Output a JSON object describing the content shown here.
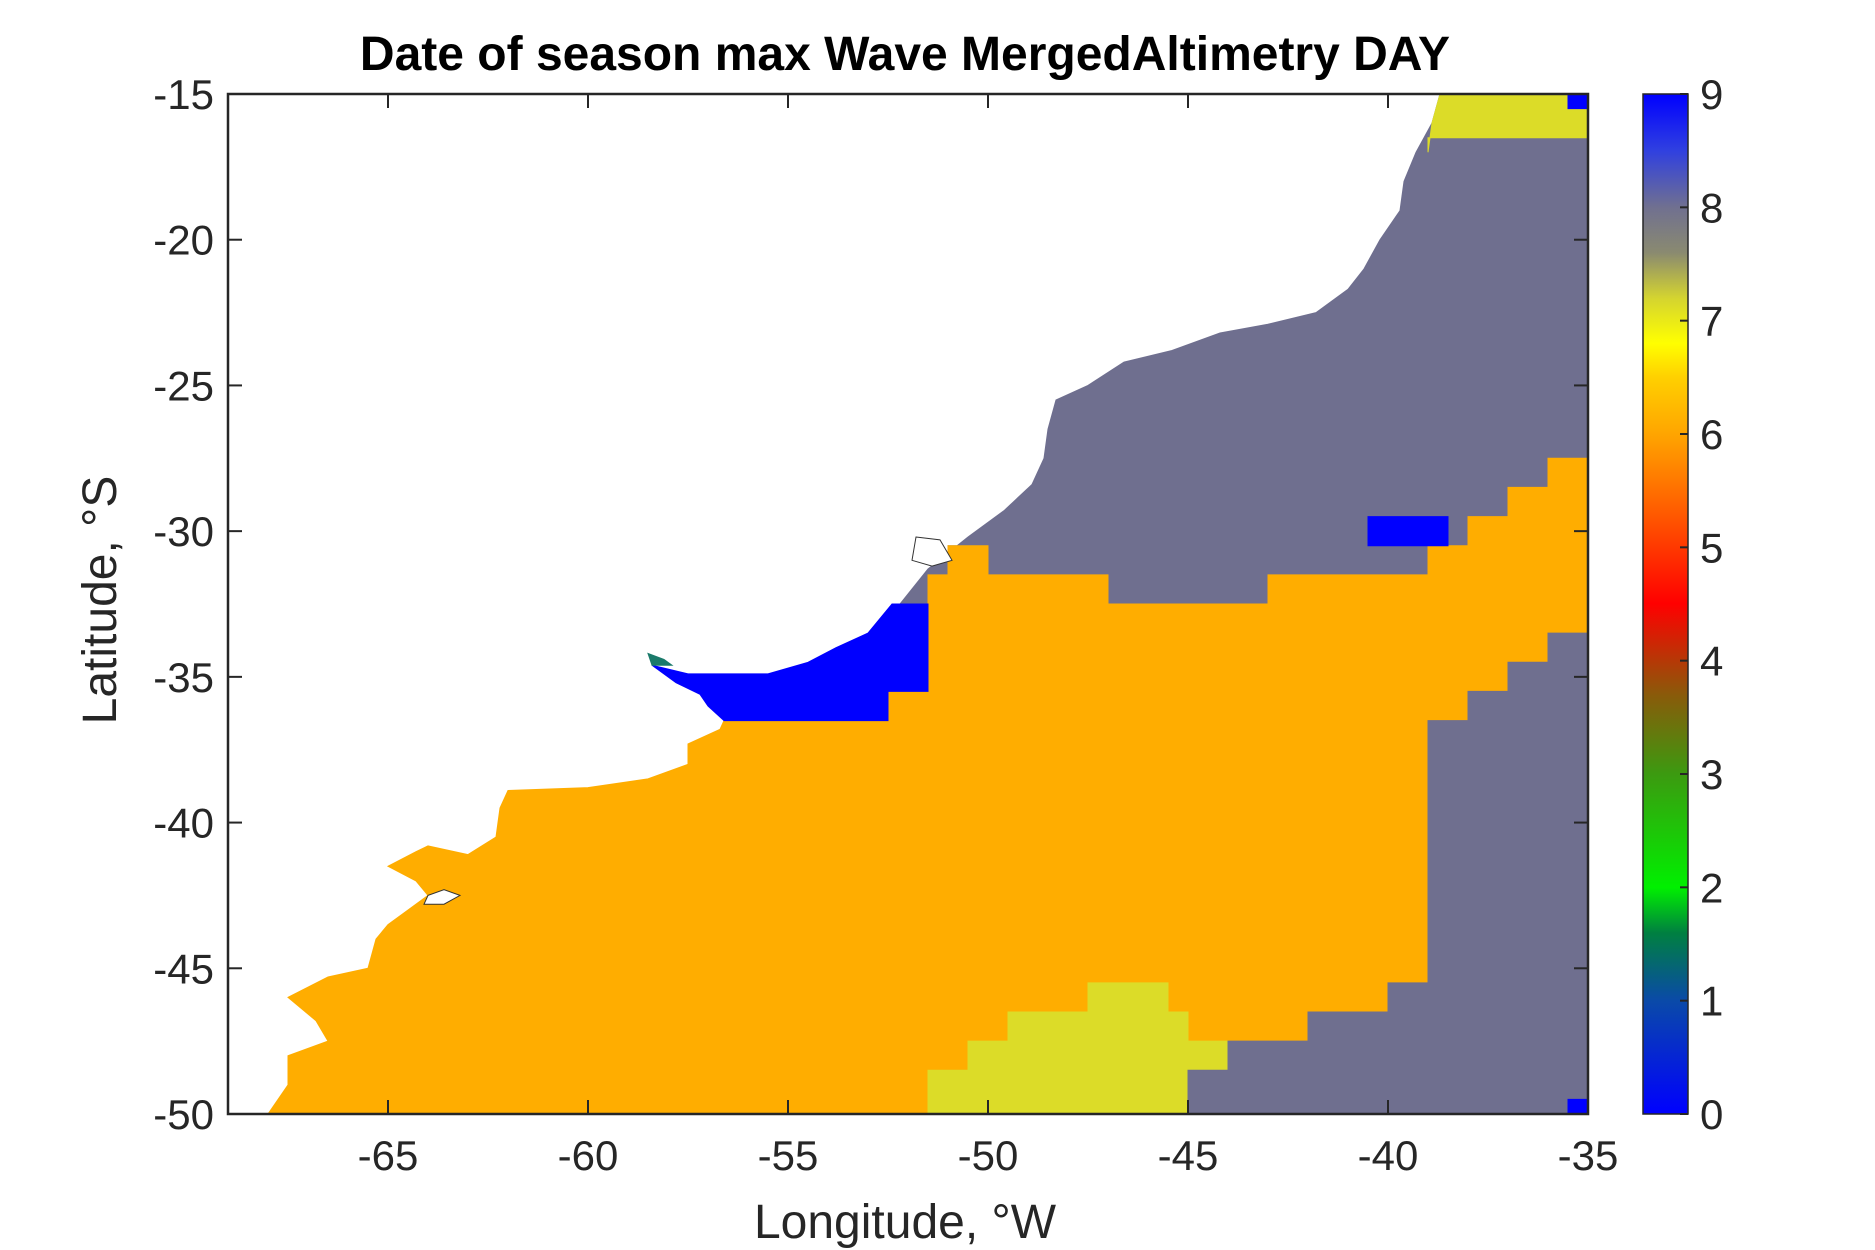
{
  "chart_data": {
    "type": "heatmap",
    "title": "Date of season max Wave MergedAltimetry DAY",
    "xlabel": "Longitude, °W",
    "ylabel": "Latitude, °S",
    "xlim": [
      -69,
      -35
    ],
    "ylim": [
      -50,
      -15
    ],
    "xticks": [
      -65,
      -60,
      -55,
      -50,
      -45,
      -40,
      -35
    ],
    "yticks": [
      -15,
      -20,
      -25,
      -30,
      -35,
      -40,
      -45,
      -50
    ],
    "colorbar": {
      "range": [
        0,
        9
      ],
      "ticks": [
        0,
        1,
        2,
        3,
        4,
        5,
        6,
        7,
        8,
        9
      ],
      "stops": [
        {
          "value": 0,
          "color": "#0000ff"
        },
        {
          "value": 1,
          "color": "#0a4aa8"
        },
        {
          "value": 1.6,
          "color": "#008040"
        },
        {
          "value": 2,
          "color": "#00f000"
        },
        {
          "value": 3,
          "color": "#3c9a10"
        },
        {
          "value": 3.7,
          "color": "#8a5a0a"
        },
        {
          "value": 4.5,
          "color": "#ff0000"
        },
        {
          "value": 5.3,
          "color": "#ff5a00"
        },
        {
          "value": 6,
          "color": "#ffa500"
        },
        {
          "value": 6.5,
          "color": "#ffd000"
        },
        {
          "value": 6.8,
          "color": "#ffff00"
        },
        {
          "value": 7.2,
          "color": "#d4d430"
        },
        {
          "value": 7.6,
          "color": "#8a8a70"
        },
        {
          "value": 8,
          "color": "#707090"
        },
        {
          "value": 8.5,
          "color": "#3040e0"
        },
        {
          "value": 9,
          "color": "#0000ff"
        }
      ]
    },
    "category_colors": {
      "9": "#0000ff",
      "8": "#6f6f8f",
      "7": "#dcdc28",
      "6": "#ffad00",
      "1": "#1a7a6a"
    },
    "regions": [
      {
        "value": 8,
        "polygon": [
          [
            -41,
            -15
          ],
          [
            -35,
            -15
          ],
          [
            -35,
            -27.5
          ],
          [
            -36,
            -27.5
          ],
          [
            -36,
            -28.5
          ],
          [
            -37,
            -28.5
          ],
          [
            -37,
            -29.5
          ],
          [
            -38,
            -29.5
          ],
          [
            -38,
            -30.5
          ],
          [
            -39,
            -30.5
          ],
          [
            -39,
            -31.5
          ],
          [
            -43,
            -31.5
          ],
          [
            -43,
            -32.5
          ],
          [
            -47,
            -32.5
          ],
          [
            -47,
            -31.5
          ],
          [
            -50,
            -31.5
          ],
          [
            -50,
            -30.5
          ],
          [
            -51,
            -30.5
          ],
          [
            -51,
            -31.5
          ],
          [
            -51.5,
            -31.5
          ],
          [
            -51.5,
            -32.5
          ],
          [
            -52.2,
            -32.5
          ],
          [
            -51.5,
            -31.3
          ],
          [
            -50.5,
            -30.2
          ],
          [
            -49.6,
            -29.3
          ],
          [
            -48.9,
            -28.4
          ],
          [
            -48.6,
            -27.5
          ],
          [
            -48.5,
            -26.5
          ],
          [
            -48.3,
            -25.5
          ],
          [
            -47.5,
            -25
          ],
          [
            -46.6,
            -24.2
          ],
          [
            -45.4,
            -23.8
          ],
          [
            -44.2,
            -23.2
          ],
          [
            -43,
            -22.9
          ],
          [
            -41.8,
            -22.5
          ],
          [
            -41,
            -21.7
          ],
          [
            -40.6,
            -21
          ],
          [
            -40.2,
            -20
          ],
          [
            -39.7,
            -19
          ],
          [
            -39.6,
            -18
          ],
          [
            -39.3,
            -17
          ],
          [
            -38.9,
            -16
          ],
          [
            -38.7,
            -15
          ]
        ]
      },
      {
        "value": 7,
        "polygon": [
          [
            -38.7,
            -15
          ],
          [
            -35,
            -15
          ],
          [
            -35,
            -16.5
          ],
          [
            -39,
            -16.5
          ],
          [
            -39,
            -17
          ],
          [
            -38.9,
            -16
          ]
        ]
      },
      {
        "value": 6,
        "polygon": [
          [
            -51.5,
            -31.5
          ],
          [
            -51,
            -31.5
          ],
          [
            -51,
            -30.5
          ],
          [
            -50,
            -30.5
          ],
          [
            -50,
            -31.5
          ],
          [
            -47,
            -31.5
          ],
          [
            -47,
            -32.5
          ],
          [
            -43,
            -32.5
          ],
          [
            -43,
            -31.5
          ],
          [
            -39,
            -31.5
          ],
          [
            -39,
            -30.5
          ],
          [
            -38,
            -30.5
          ],
          [
            -38,
            -29.5
          ],
          [
            -37,
            -29.5
          ],
          [
            -37,
            -28.5
          ],
          [
            -36,
            -28.5
          ],
          [
            -36,
            -27.5
          ],
          [
            -35,
            -27.5
          ],
          [
            -35,
            -33.5
          ],
          [
            -36,
            -33.5
          ],
          [
            -36,
            -34.5
          ],
          [
            -37,
            -34.5
          ],
          [
            -37,
            -35.5
          ],
          [
            -38,
            -35.5
          ],
          [
            -38,
            -36.5
          ],
          [
            -39,
            -36.5
          ],
          [
            -39,
            -45.5
          ],
          [
            -40,
            -45.5
          ],
          [
            -40,
            -46.5
          ],
          [
            -42,
            -46.5
          ],
          [
            -42,
            -47.5
          ],
          [
            -44,
            -47.5
          ],
          [
            -44,
            -48.5
          ],
          [
            -45,
            -48.5
          ],
          [
            -45,
            -50
          ],
          [
            -51.5,
            -50
          ],
          [
            -51.5,
            -48.5
          ],
          [
            -50.5,
            -48.5
          ],
          [
            -50.5,
            -47.5
          ],
          [
            -49.5,
            -47.5
          ],
          [
            -49.5,
            -46.5
          ],
          [
            -47.5,
            -46.5
          ],
          [
            -47.5,
            -45.5
          ],
          [
            -45.5,
            -45.5
          ],
          [
            -45.5,
            -47.5
          ],
          [
            -51.5,
            -50
          ],
          [
            -68,
            -50
          ],
          [
            -67.5,
            -49
          ],
          [
            -67.5,
            -48
          ],
          [
            -66.5,
            -47.5
          ],
          [
            -66.8,
            -46.8
          ],
          [
            -67.5,
            -46
          ],
          [
            -66.5,
            -45.3
          ],
          [
            -65.5,
            -45
          ],
          [
            -65.3,
            -44
          ],
          [
            -65,
            -43.5
          ],
          [
            -64.5,
            -43
          ],
          [
            -64,
            -42.5
          ],
          [
            -64.3,
            -42
          ],
          [
            -65,
            -41.5
          ],
          [
            -64.3,
            -41
          ],
          [
            -64,
            -40.8
          ],
          [
            -63,
            -41.1
          ],
          [
            -62.3,
            -40.5
          ],
          [
            -62.2,
            -39.5
          ],
          [
            -62,
            -38.9
          ],
          [
            -60,
            -38.8
          ],
          [
            -58.5,
            -38.5
          ],
          [
            -57.5,
            -38
          ],
          [
            -57.5,
            -37.3
          ],
          [
            -56.7,
            -36.8
          ],
          [
            -56.6,
            -36.5
          ],
          [
            -52.5,
            -36.5
          ],
          [
            -52.5,
            -35.5
          ],
          [
            -51.5,
            -35.5
          ]
        ]
      },
      {
        "value": 7,
        "polygon": [
          [
            -51.5,
            -50
          ],
          [
            -51.5,
            -48.5
          ],
          [
            -50.5,
            -48.5
          ],
          [
            -50.5,
            -47.5
          ],
          [
            -49.5,
            -47.5
          ],
          [
            -49.5,
            -46.5
          ],
          [
            -47.5,
            -46.5
          ],
          [
            -47.5,
            -45.5
          ],
          [
            -45.5,
            -45.5
          ],
          [
            -45.5,
            -46.5
          ],
          [
            -45,
            -46.5
          ],
          [
            -45,
            -47.5
          ],
          [
            -44,
            -47.5
          ],
          [
            -44,
            -48.5
          ],
          [
            -45,
            -48.5
          ],
          [
            -45,
            -50
          ]
        ]
      },
      {
        "value": 8,
        "polygon": [
          [
            -45,
            -50
          ],
          [
            -45,
            -48.5
          ],
          [
            -44,
            -48.5
          ],
          [
            -44,
            -47.5
          ],
          [
            -42,
            -47.5
          ],
          [
            -42,
            -46.5
          ],
          [
            -40,
            -46.5
          ],
          [
            -40,
            -45.5
          ],
          [
            -39,
            -45.5
          ],
          [
            -39,
            -36.5
          ],
          [
            -38,
            -36.5
          ],
          [
            -38,
            -35.5
          ],
          [
            -37,
            -35.5
          ],
          [
            -37,
            -34.5
          ],
          [
            -36,
            -34.5
          ],
          [
            -36,
            -33.5
          ],
          [
            -35,
            -33.5
          ],
          [
            -35,
            -50
          ]
        ]
      },
      {
        "value": 9,
        "polygon": [
          [
            -51.5,
            -35.5
          ],
          [
            -52.5,
            -35.5
          ],
          [
            -52.5,
            -36.5
          ],
          [
            -56.6,
            -36.5
          ],
          [
            -57,
            -36
          ],
          [
            -57.2,
            -35.6
          ],
          [
            -57.8,
            -35.2
          ],
          [
            -58.4,
            -34.6
          ],
          [
            -57.5,
            -34.9
          ],
          [
            -56.5,
            -34.9
          ],
          [
            -55.5,
            -34.9
          ],
          [
            -54.5,
            -34.5
          ],
          [
            -53.8,
            -34
          ],
          [
            -53,
            -33.5
          ],
          [
            -52.4,
            -32.5
          ],
          [
            -51.5,
            -32.5
          ]
        ]
      },
      {
        "value": 9,
        "polygon": [
          [
            -40.5,
            -29.5
          ],
          [
            -38.5,
            -29.5
          ],
          [
            -38.5,
            -30.5
          ],
          [
            -40.5,
            -30.5
          ]
        ]
      },
      {
        "value": 9,
        "polygon": [
          [
            -35.5,
            -15
          ],
          [
            -35,
            -15
          ],
          [
            -35,
            -15.5
          ],
          [
            -35.5,
            -15.5
          ]
        ]
      },
      {
        "value": 9,
        "polygon": [
          [
            -35.5,
            -49.5
          ],
          [
            -35,
            -49.5
          ],
          [
            -35,
            -50
          ],
          [
            -35.5,
            -50
          ]
        ]
      },
      {
        "value": 1,
        "polygon": [
          [
            -58.5,
            -34.2
          ],
          [
            -58.1,
            -34.4
          ],
          [
            -57.9,
            -34.6
          ],
          [
            -58.4,
            -34.6
          ]
        ]
      }
    ],
    "land_holes": [
      {
        "polygon": [
          [
            -64,
            -42.5
          ],
          [
            -63.6,
            -42.3
          ],
          [
            -63.2,
            -42.5
          ],
          [
            -63.6,
            -42.8
          ],
          [
            -64.1,
            -42.8
          ]
        ]
      },
      {
        "polygon": [
          [
            -51.8,
            -30.2
          ],
          [
            -51.2,
            -30.3
          ],
          [
            -50.9,
            -31
          ],
          [
            -51.4,
            -31.2
          ],
          [
            -51.9,
            -31
          ]
        ]
      }
    ]
  }
}
